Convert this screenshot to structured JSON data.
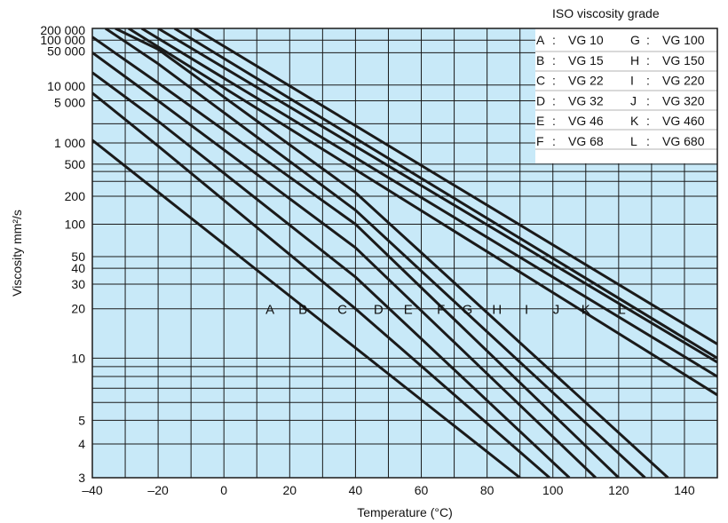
{
  "chart_data": {
    "type": "line",
    "xlabel": "Temperature (°C)",
    "ylabel": "Viscosity mm²/s",
    "xlim": [
      -40,
      150
    ],
    "ylim": [
      3,
      200000
    ],
    "y_scale": "walther",
    "grid": true,
    "x_ticks": [
      -40,
      -20,
      0,
      20,
      40,
      60,
      80,
      100,
      120,
      140
    ],
    "x_tick_labels": [
      "–40",
      "–20",
      "0",
      "20",
      "40",
      "60",
      "80",
      "100",
      "120",
      "140"
    ],
    "y_ticks": [
      3,
      4,
      5,
      10,
      20,
      30,
      40,
      50,
      100,
      200,
      500,
      1000,
      5000,
      10000,
      50000,
      100000,
      200000
    ],
    "y_tick_labels": [
      "3",
      "4",
      "5",
      "10",
      "20",
      "30",
      "40",
      "50",
      "100",
      "200",
      "500",
      "1 000",
      "5 000",
      "10 000",
      "50 000",
      "100 000",
      "200 000"
    ],
    "legend_title": "ISO viscosity grade",
    "legend_position": "top-right",
    "series": [
      {
        "name": "A",
        "grade": "VG 10",
        "points": [
          [
            -40,
            1100
          ],
          [
            90,
            3
          ]
        ]
      },
      {
        "name": "B",
        "grade": "VG 15",
        "points": [
          [
            -40,
            7000
          ],
          [
            -20,
            900
          ],
          [
            40,
            20
          ],
          [
            99,
            3
          ]
        ]
      },
      {
        "name": "C",
        "grade": "VG 22",
        "points": [
          [
            -40,
            18000
          ],
          [
            -20,
            2200
          ],
          [
            40,
            34
          ],
          [
            105,
            3
          ]
        ]
      },
      {
        "name": "D",
        "grade": "VG 32",
        "points": [
          [
            -40,
            50000
          ],
          [
            -20,
            5000
          ],
          [
            40,
            60
          ],
          [
            113,
            3
          ]
        ]
      },
      {
        "name": "E",
        "grade": "VG 46",
        "points": [
          [
            -40,
            120000
          ],
          [
            -20,
            11000
          ],
          [
            40,
            100
          ],
          [
            120,
            3
          ]
        ]
      },
      {
        "name": "F",
        "grade": "VG 68",
        "points": [
          [
            -36,
            200000
          ],
          [
            -20,
            28000
          ],
          [
            40,
            140
          ],
          [
            128,
            3
          ]
        ]
      },
      {
        "name": "G",
        "grade": "VG 100",
        "points": [
          [
            -33,
            200000
          ],
          [
            -20,
            60000
          ],
          [
            40,
            220
          ],
          [
            135,
            3
          ]
        ]
      },
      {
        "name": "H",
        "grade": "VG 150",
        "points": [
          [
            -29,
            200000
          ],
          [
            150,
            6.5
          ]
        ]
      },
      {
        "name": "I",
        "grade": "VG 220",
        "points": [
          [
            -25,
            200000
          ],
          [
            150,
            8
          ]
        ]
      },
      {
        "name": "J",
        "grade": "VG 320",
        "points": [
          [
            -20,
            200000
          ],
          [
            150,
            9.5
          ]
        ]
      },
      {
        "name": "K",
        "grade": "VG 460",
        "points": [
          [
            -15,
            200000
          ],
          [
            150,
            10
          ]
        ]
      },
      {
        "name": "L",
        "grade": "VG 680",
        "points": [
          [
            -9,
            200000
          ],
          [
            150,
            12
          ]
        ]
      }
    ],
    "curve_labels": [
      {
        "name": "A",
        "at": [
          14,
          18
        ]
      },
      {
        "name": "B",
        "at": [
          24,
          18
        ]
      },
      {
        "name": "C",
        "at": [
          36,
          18
        ]
      },
      {
        "name": "D",
        "at": [
          47,
          18
        ]
      },
      {
        "name": "E",
        "at": [
          56,
          18
        ]
      },
      {
        "name": "F",
        "at": [
          66,
          18
        ]
      },
      {
        "name": "G",
        "at": [
          74,
          18
        ]
      },
      {
        "name": "H",
        "at": [
          83,
          18
        ]
      },
      {
        "name": "I",
        "at": [
          92,
          18
        ]
      },
      {
        "name": "J",
        "at": [
          101,
          18
        ]
      },
      {
        "name": "K",
        "at": [
          110,
          18
        ]
      },
      {
        "name": "L",
        "at": [
          121,
          18
        ]
      }
    ],
    "legend_entries": [
      {
        "letter": "A",
        "grade": "VG 10"
      },
      {
        "letter": "B",
        "grade": "VG 15"
      },
      {
        "letter": "C",
        "grade": "VG 22"
      },
      {
        "letter": "D",
        "grade": "VG 32"
      },
      {
        "letter": "E",
        "grade": "VG 46"
      },
      {
        "letter": "F",
        "grade": "VG 68"
      },
      {
        "letter": "G",
        "grade": "VG 100"
      },
      {
        "letter": "H",
        "grade": "VG 150"
      },
      {
        "letter": "I",
        "grade": "VG 220"
      },
      {
        "letter": "J",
        "grade": "VG 320"
      },
      {
        "letter": "K",
        "grade": "VG 460"
      },
      {
        "letter": "L",
        "grade": "VG 680"
      }
    ],
    "colors": {
      "plot_background": "#c8e9f8",
      "grid": "#1a1a1a",
      "curve": "#1a1a1a",
      "legend_background": "#ffffff"
    }
  }
}
